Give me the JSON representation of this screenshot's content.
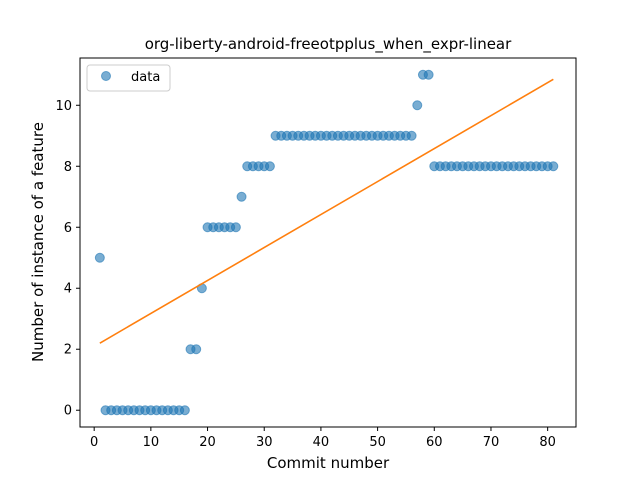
{
  "chart_data": {
    "type": "scatter",
    "title": "org-liberty-android-freeotpplus_when_expr-linear",
    "xlabel": "Commit number",
    "ylabel": "Number of instance of a feature",
    "xlim": [
      -2.5,
      85.0
    ],
    "ylim": [
      -0.55,
      11.55
    ],
    "xticks": [
      0,
      10,
      20,
      30,
      40,
      50,
      60,
      70,
      80
    ],
    "yticks": [
      0,
      2,
      4,
      6,
      8,
      10
    ],
    "grid": false,
    "legend": {
      "placement": "top-left",
      "entries": [
        "data"
      ]
    },
    "colors": {
      "points": "#1f77b4",
      "fit_line": "#ff7f0e"
    },
    "series": [
      {
        "name": "data",
        "kind": "points",
        "x": [
          1,
          2,
          3,
          4,
          5,
          6,
          7,
          8,
          9,
          10,
          11,
          12,
          13,
          14,
          15,
          16,
          17,
          18,
          19,
          20,
          21,
          22,
          23,
          24,
          25,
          26,
          27,
          28,
          29,
          30,
          31,
          32,
          33,
          34,
          35,
          36,
          37,
          38,
          39,
          40,
          41,
          42,
          43,
          44,
          45,
          46,
          47,
          48,
          49,
          50,
          51,
          52,
          53,
          54,
          55,
          56,
          57,
          58,
          59,
          60,
          61,
          62,
          63,
          64,
          65,
          66,
          67,
          68,
          69,
          70,
          71,
          72,
          73,
          74,
          75,
          76,
          77,
          78,
          79,
          80,
          81
        ],
        "y": [
          5,
          0,
          0,
          0,
          0,
          0,
          0,
          0,
          0,
          0,
          0,
          0,
          0,
          0,
          0,
          0,
          2,
          2,
          4,
          6,
          6,
          6,
          6,
          6,
          6,
          7,
          8,
          8,
          8,
          8,
          8,
          9,
          9,
          9,
          9,
          9,
          9,
          9,
          9,
          9,
          9,
          9,
          9,
          9,
          9,
          9,
          9,
          9,
          9,
          9,
          9,
          9,
          9,
          9,
          9,
          9,
          10,
          11,
          11,
          8,
          8,
          8,
          8,
          8,
          8,
          8,
          8,
          8,
          8,
          8,
          8,
          8,
          8,
          8,
          8,
          8,
          8,
          8,
          8,
          8,
          8
        ]
      },
      {
        "kind": "line",
        "x": [
          1,
          81
        ],
        "y": [
          2.2,
          10.85
        ]
      }
    ]
  }
}
